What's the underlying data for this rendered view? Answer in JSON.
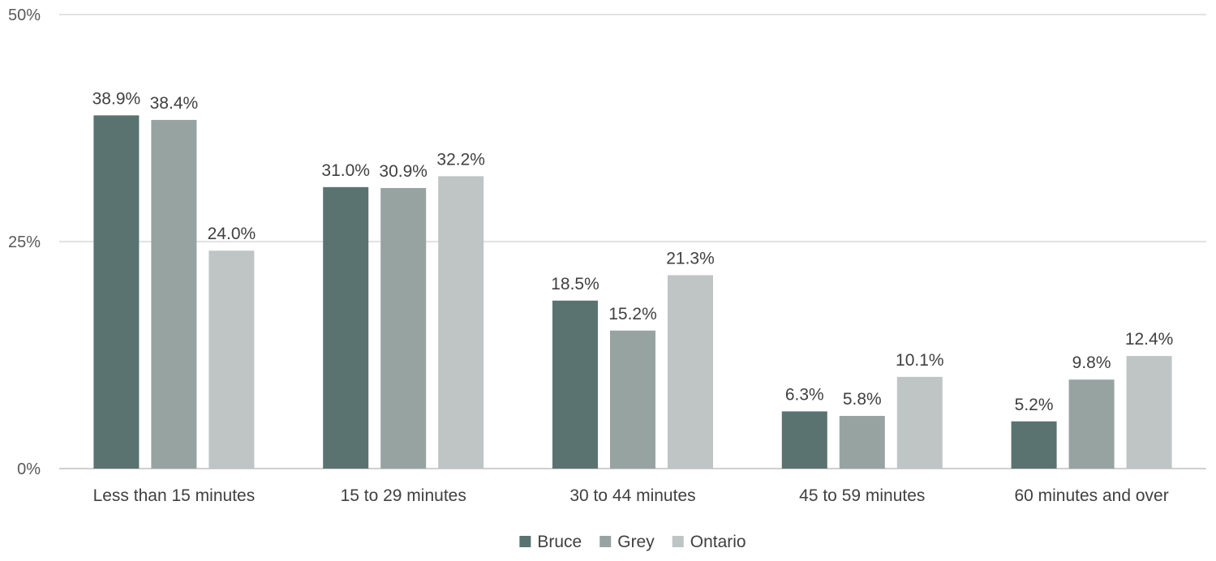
{
  "chart_data": {
    "type": "bar",
    "categories": [
      "Less than 15 minutes",
      "15 to 29 minutes",
      "30 to 44 minutes",
      "45 to 59 minutes",
      "60 minutes and over"
    ],
    "series": [
      {
        "name": "Bruce",
        "color": "#5a7371",
        "values": [
          38.9,
          31.0,
          18.5,
          6.3,
          5.2
        ],
        "labels": [
          "38.9%",
          "31.0%",
          "18.5%",
          "6.3%",
          "5.2%"
        ]
      },
      {
        "name": "Grey",
        "color": "#97a3a1",
        "values": [
          38.4,
          30.9,
          15.2,
          5.8,
          9.8
        ],
        "labels": [
          "38.4%",
          "30.9%",
          "15.2%",
          "5.8%",
          "9.8%"
        ]
      },
      {
        "name": "Ontario",
        "color": "#bfc4c5",
        "values": [
          24.0,
          32.2,
          21.3,
          10.1,
          12.4
        ],
        "labels": [
          "24.0%",
          "32.2%",
          "21.3%",
          "10.1%",
          "12.4%"
        ]
      }
    ],
    "ylim": [
      0,
      50
    ],
    "yticks": [
      0,
      25,
      50
    ],
    "ytick_labels": [
      "0%",
      "25%",
      "50%"
    ],
    "grid": true,
    "legend_position": "bottom-center",
    "title": "",
    "xlabel": "",
    "ylabel": ""
  }
}
